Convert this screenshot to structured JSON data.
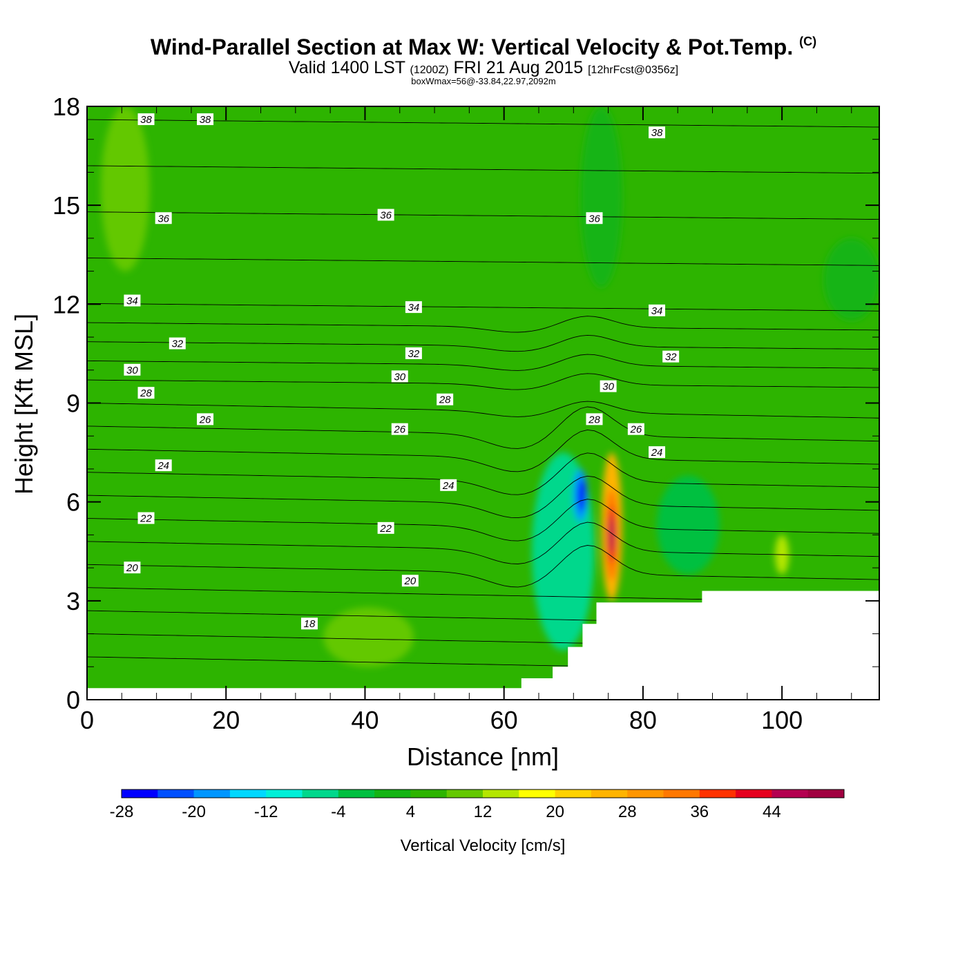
{
  "title": {
    "main": "Wind-Parallel Section at Max W: Vertical Velocity & Pot.Temp.",
    "copyright": "(C)",
    "valid": "Valid 1400 LST",
    "zulu": "(1200Z)",
    "date": "FRI 21 Aug 2015",
    "fcst": "[12hrFcst@0356z]",
    "box": "boxWmax=56@-33.84,22.97,2092m"
  },
  "chart_data": {
    "type": "heatmap",
    "xlabel": "Distance [nm]",
    "ylabel": "Height [Kft MSL]",
    "xlim": [
      0,
      114
    ],
    "ylim": [
      0,
      18
    ],
    "x_ticks": [
      "0",
      "20",
      "40",
      "60",
      "80",
      "100"
    ],
    "y_ticks": [
      "0",
      "3",
      "6",
      "9",
      "12",
      "15",
      "18"
    ],
    "colorbar": {
      "label": "Vertical Velocity [cm/s]",
      "tick_labels": [
        "-28",
        "-20",
        "-12",
        "-4",
        "4",
        "12",
        "20",
        "28",
        "36",
        "44"
      ],
      "levels": [
        -32,
        -28,
        -24,
        -20,
        -16,
        -12,
        -8,
        -4,
        0,
        4,
        8,
        12,
        16,
        20,
        24,
        28,
        32,
        36,
        40,
        44,
        48
      ],
      "colors": [
        "#0000ff",
        "#0050ff",
        "#0096ff",
        "#00d8ff",
        "#00f0d8",
        "#00d88c",
        "#00c040",
        "#14b414",
        "#2db400",
        "#64c800",
        "#b4e600",
        "#ffff00",
        "#ffd200",
        "#ffb400",
        "#ff9600",
        "#ff7800",
        "#ff3200",
        "#e6001e",
        "#b40050",
        "#a00040"
      ]
    },
    "background_velocity_class": "0",
    "velocity_features": [
      {
        "class": "20",
        "x": [
          74,
          77
        ],
        "y": [
          3,
          7.5
        ],
        "peak_x": 75.5,
        "peak_y": 5
      },
      {
        "class": "-24",
        "x": [
          70,
          72
        ],
        "y": [
          5.4,
          7.0
        ],
        "peak_x": 71.2,
        "peak_y": 6.2
      },
      {
        "class": "-12",
        "x": [
          64,
          73
        ],
        "y": [
          1.5,
          7.5
        ]
      },
      {
        "class": "-8",
        "x": [
          82,
          91
        ],
        "y": [
          3.8,
          6.8
        ]
      },
      {
        "class": "-4",
        "x": [
          71,
          77
        ],
        "y": [
          12.5,
          18
        ]
      },
      {
        "class": "-4",
        "x": [
          106,
          114
        ],
        "y": [
          11.5,
          14
        ]
      },
      {
        "class": "4",
        "x": [
          2,
          9
        ],
        "y": [
          13,
          18
        ]
      },
      {
        "class": "4",
        "x": [
          34,
          47
        ],
        "y": [
          1,
          2.8
        ]
      },
      {
        "class": "8",
        "x": [
          99,
          101
        ],
        "y": [
          3.8,
          5
        ]
      }
    ],
    "theta_contours": {
      "units": "C",
      "levels": [
        18,
        19,
        20,
        21,
        22,
        23,
        24,
        25,
        26,
        27,
        28,
        29,
        30,
        31,
        32,
        33,
        34,
        35,
        36,
        37,
        38,
        39
      ],
      "labeled_levels": [
        "18",
        "20",
        "22",
        "24",
        "26",
        "28",
        "30",
        "32",
        "34",
        "36",
        "38"
      ],
      "labels": [
        {
          "text": "38",
          "x": 8.5,
          "y": 17.6
        },
        {
          "text": "38",
          "x": 17,
          "y": 17.6
        },
        {
          "text": "38",
          "x": 82,
          "y": 17.2
        },
        {
          "text": "36",
          "x": 11,
          "y": 14.6
        },
        {
          "text": "36",
          "x": 43,
          "y": 14.7
        },
        {
          "text": "36",
          "x": 73,
          "y": 14.6
        },
        {
          "text": "34",
          "x": 6.5,
          "y": 12.1
        },
        {
          "text": "34",
          "x": 47,
          "y": 11.9
        },
        {
          "text": "34",
          "x": 82,
          "y": 11.8
        },
        {
          "text": "32",
          "x": 13,
          "y": 10.8
        },
        {
          "text": "32",
          "x": 47,
          "y": 10.5
        },
        {
          "text": "32",
          "x": 84,
          "y": 10.4
        },
        {
          "text": "30",
          "x": 6.5,
          "y": 10.0
        },
        {
          "text": "30",
          "x": 45,
          "y": 9.8
        },
        {
          "text": "30",
          "x": 75,
          "y": 9.5
        },
        {
          "text": "28",
          "x": 8.5,
          "y": 9.3
        },
        {
          "text": "28",
          "x": 51.5,
          "y": 9.1
        },
        {
          "text": "28",
          "x": 73,
          "y": 8.5
        },
        {
          "text": "26",
          "x": 17,
          "y": 8.5
        },
        {
          "text": "26",
          "x": 45,
          "y": 8.2
        },
        {
          "text": "26",
          "x": 79,
          "y": 8.2
        },
        {
          "text": "24",
          "x": 11,
          "y": 7.1
        },
        {
          "text": "24",
          "x": 52,
          "y": 6.5
        },
        {
          "text": "24",
          "x": 82,
          "y": 7.5
        },
        {
          "text": "22",
          "x": 8.5,
          "y": 5.5
        },
        {
          "text": "22",
          "x": 43,
          "y": 5.2
        },
        {
          "text": "20",
          "x": 6.5,
          "y": 4.0
        },
        {
          "text": "20",
          "x": 46.5,
          "y": 3.6
        },
        {
          "text": "18",
          "x": 32,
          "y": 2.3
        }
      ]
    },
    "terrain_top": [
      [
        0,
        0.35
      ],
      [
        62.5,
        0.35
      ],
      [
        62.5,
        0.65
      ],
      [
        67,
        0.65
      ],
      [
        67,
        1.0
      ],
      [
        69.2,
        1.0
      ],
      [
        69.2,
        1.6
      ],
      [
        71.3,
        1.6
      ],
      [
        71.3,
        2.3
      ],
      [
        73.3,
        2.3
      ],
      [
        73.3,
        2.95
      ],
      [
        88.5,
        2.95
      ],
      [
        88.5,
        3.3
      ],
      [
        114,
        3.3
      ]
    ]
  }
}
